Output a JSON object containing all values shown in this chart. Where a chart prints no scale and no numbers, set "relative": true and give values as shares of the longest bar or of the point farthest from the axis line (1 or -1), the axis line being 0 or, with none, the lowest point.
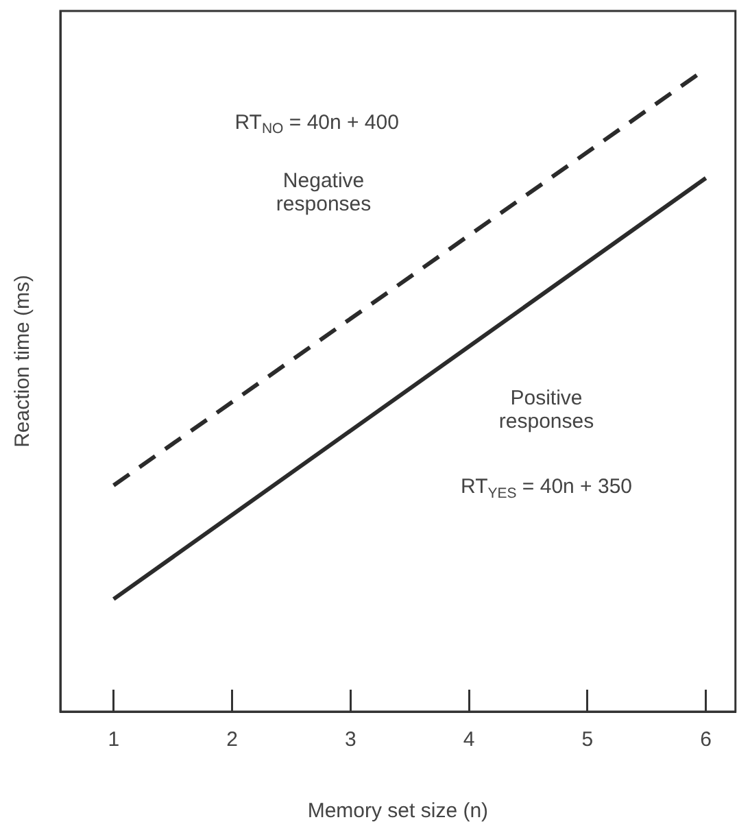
{
  "chart_data": {
    "type": "line",
    "relative": true,
    "xlabel": "Memory set size (n)",
    "ylabel": "Reaction time (ms)",
    "x": [
      1,
      6
    ],
    "xlim": [
      0.55,
      6.25
    ],
    "xticks": [
      1,
      2,
      3,
      4,
      5,
      6
    ],
    "grid": false,
    "legend": false,
    "marker": "none",
    "series": [
      {
        "values": [
          0.352,
          1
        ],
        "color": "#2b2b2b",
        "line_style": "dashed"
      },
      {
        "values": [
          0.175,
          0.83
        ],
        "color": "#2b2b2b",
        "line_style": "solid"
      }
    ],
    "annotations": [
      "RT$_{NO}$ = 40n + 400",
      "Negative\nresponses",
      "Positive\nresponses",
      "RT$_{YES}$ = 40n + 350"
    ]
  }
}
